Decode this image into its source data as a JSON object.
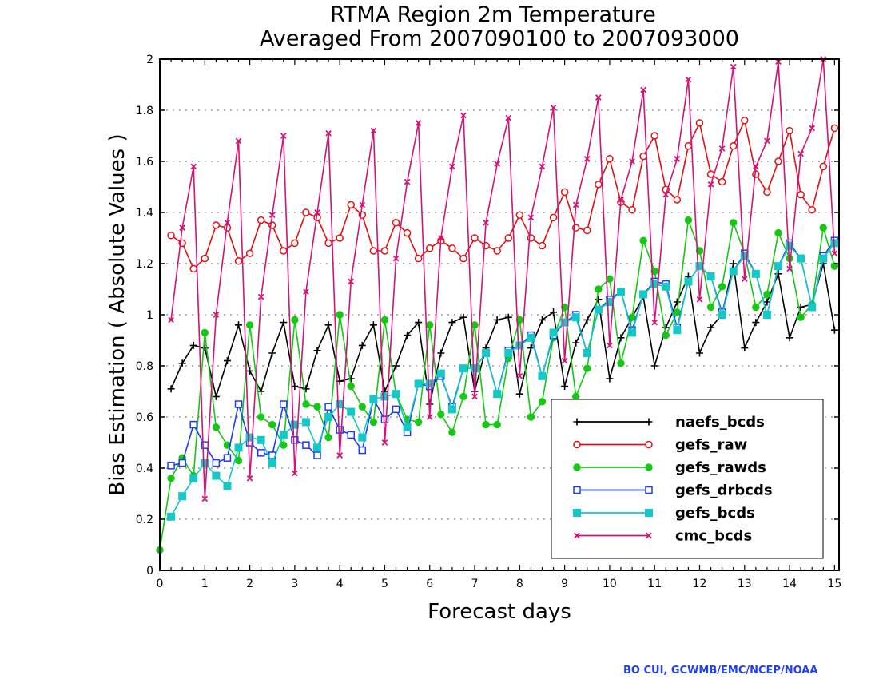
{
  "chart_data": {
    "type": "line",
    "title": "RTMA Region 2m Temperature",
    "subtitle": "Averaged From 2007090100 to 2007093000",
    "xlabel": "Forecast days",
    "ylabel": "Bias Estimation ( Absolute Values )",
    "xlim": [
      0,
      15.1
    ],
    "ylim": [
      0,
      2
    ],
    "xticks": [
      "0",
      "1",
      "2",
      "3",
      "4",
      "5",
      "6",
      "7",
      "8",
      "9",
      "10",
      "11",
      "12",
      "13",
      "14",
      "15"
    ],
    "yticks": [
      "0",
      "0.2",
      "0.4",
      "0.6",
      "0.8",
      "1",
      "1.2",
      "1.4",
      "1.6",
      "1.8",
      "2"
    ],
    "grid": "horizontal dotted",
    "legend_position": "bottom-right",
    "series": [
      {
        "name": "naefs_bcds",
        "color": "#000000",
        "marker": "plus",
        "x": [
          0.25,
          0.5,
          0.75,
          1.0,
          1.25,
          1.5,
          1.75,
          2.0,
          2.25,
          2.5,
          2.75,
          3.0,
          3.25,
          3.5,
          3.75,
          4.0,
          4.25,
          4.5,
          4.75,
          5.0,
          5.25,
          5.5,
          5.75,
          6.0,
          6.25,
          6.5,
          6.75,
          7.0,
          7.25,
          7.5,
          7.75,
          8.0,
          8.25,
          8.5,
          8.75,
          9.0,
          9.25,
          9.5,
          9.75,
          10.0,
          10.25,
          10.5,
          10.75,
          11.0,
          11.25,
          11.5,
          11.75,
          12.0,
          12.25,
          12.5,
          12.75,
          13.0,
          13.25,
          13.5,
          13.75,
          14.0,
          14.25,
          14.5,
          14.75,
          15.0
        ],
        "y": [
          0.71,
          0.81,
          0.88,
          0.87,
          0.68,
          0.82,
          0.96,
          0.78,
          0.7,
          0.85,
          0.97,
          0.72,
          0.71,
          0.86,
          0.96,
          0.74,
          0.75,
          0.88,
          0.96,
          0.7,
          0.8,
          0.92,
          0.97,
          0.65,
          0.85,
          0.97,
          0.99,
          0.7,
          0.87,
          0.98,
          0.99,
          0.69,
          0.87,
          0.98,
          1.01,
          0.72,
          0.89,
          0.98,
          1.06,
          0.75,
          0.91,
          0.99,
          1.07,
          0.8,
          0.95,
          1.05,
          1.15,
          0.85,
          0.95,
          1.0,
          1.2,
          0.87,
          0.97,
          1.05,
          1.16,
          0.91,
          1.03,
          1.04,
          1.2,
          0.94
        ]
      },
      {
        "name": "gefs_raw",
        "color": "#e21010",
        "marker": "circle",
        "x": [
          0.25,
          0.5,
          0.75,
          1.0,
          1.25,
          1.5,
          1.75,
          2.0,
          2.25,
          2.5,
          2.75,
          3.0,
          3.25,
          3.5,
          3.75,
          4.0,
          4.25,
          4.5,
          4.75,
          5.0,
          5.25,
          5.5,
          5.75,
          6.0,
          6.25,
          6.5,
          6.75,
          7.0,
          7.25,
          7.5,
          7.75,
          8.0,
          8.25,
          8.5,
          8.75,
          9.0,
          9.25,
          9.5,
          9.75,
          10.0,
          10.25,
          10.5,
          10.75,
          11.0,
          11.25,
          11.5,
          11.75,
          12.0,
          12.25,
          12.5,
          12.75,
          13.0,
          13.25,
          13.5,
          13.75,
          14.0,
          14.25,
          14.5,
          14.75,
          15.0
        ],
        "y": [
          1.31,
          1.28,
          1.18,
          1.22,
          1.35,
          1.34,
          1.21,
          1.24,
          1.37,
          1.35,
          1.25,
          1.28,
          1.4,
          1.38,
          1.28,
          1.3,
          1.43,
          1.39,
          1.25,
          1.25,
          1.36,
          1.32,
          1.22,
          1.26,
          1.29,
          1.26,
          1.22,
          1.3,
          1.27,
          1.25,
          1.3,
          1.39,
          1.3,
          1.27,
          1.38,
          1.48,
          1.34,
          1.33,
          1.51,
          1.61,
          1.44,
          1.41,
          1.62,
          1.7,
          1.49,
          1.45,
          1.66,
          1.75,
          1.55,
          1.52,
          1.66,
          1.76,
          1.55,
          1.48,
          1.6,
          1.72,
          1.47,
          1.41,
          1.58,
          1.73
        ]
      },
      {
        "name": "gefs_rawds",
        "color": "#14c814",
        "marker": "filled-circle",
        "x": [
          0.0,
          0.25,
          0.5,
          0.75,
          1.0,
          1.25,
          1.5,
          1.75,
          2.0,
          2.25,
          2.5,
          2.75,
          3.0,
          3.25,
          3.5,
          3.75,
          4.0,
          4.25,
          4.5,
          4.75,
          5.0,
          5.25,
          5.5,
          5.75,
          6.0,
          6.25,
          6.5,
          6.75,
          7.0,
          7.25,
          7.5,
          7.75,
          8.0,
          8.25,
          8.5,
          8.75,
          9.0,
          9.25,
          9.5,
          9.75,
          10.0,
          10.25,
          10.5,
          10.75,
          11.0,
          11.25,
          11.5,
          11.75,
          12.0,
          12.25,
          12.5,
          12.75,
          13.0,
          13.25,
          13.5,
          13.75,
          14.0,
          14.25,
          14.5,
          14.75,
          15.0
        ],
        "y": [
          0.08,
          0.36,
          0.44,
          0.37,
          0.93,
          0.56,
          0.49,
          0.43,
          0.96,
          0.6,
          0.57,
          0.49,
          0.98,
          0.65,
          0.64,
          0.52,
          1.0,
          0.72,
          0.64,
          0.58,
          0.98,
          0.69,
          0.59,
          0.58,
          0.96,
          0.61,
          0.54,
          0.68,
          0.96,
          0.57,
          0.57,
          0.83,
          0.98,
          0.6,
          0.66,
          0.91,
          1.03,
          0.68,
          0.79,
          1.1,
          1.14,
          0.81,
          0.99,
          1.29,
          1.17,
          0.92,
          1.01,
          1.37,
          1.25,
          1.03,
          1.11,
          1.36,
          1.24,
          1.03,
          1.08,
          1.32,
          1.22,
          0.99,
          1.04,
          1.34,
          1.19
        ]
      },
      {
        "name": "gefs_drbcds",
        "color": "#1e3cf0",
        "marker": "square",
        "x": [
          0.25,
          0.5,
          0.75,
          1.0,
          1.25,
          1.5,
          1.75,
          2.0,
          2.25,
          2.5,
          2.75,
          3.0,
          3.25,
          3.5,
          3.75,
          4.0,
          4.25,
          4.5,
          4.75,
          5.0,
          5.25,
          5.5,
          5.75,
          6.0,
          6.25,
          6.5,
          6.75,
          7.0,
          7.25,
          7.5,
          7.75,
          8.0,
          8.25,
          8.5,
          8.75,
          9.0,
          9.25,
          9.5,
          9.75,
          10.0,
          10.25,
          10.5,
          10.75,
          11.0,
          11.25,
          11.5,
          11.75,
          12.0,
          12.25,
          12.5,
          12.75,
          13.0,
          13.25,
          13.5,
          13.75,
          14.0,
          14.25,
          14.5,
          14.75,
          15.0
        ],
        "y": [
          0.41,
          0.42,
          0.57,
          0.49,
          0.42,
          0.44,
          0.65,
          0.5,
          0.46,
          0.45,
          0.65,
          0.51,
          0.49,
          0.45,
          0.64,
          0.55,
          0.53,
          0.47,
          0.67,
          0.59,
          0.63,
          0.54,
          0.73,
          0.72,
          0.76,
          0.64,
          0.79,
          0.79,
          0.85,
          0.69,
          0.86,
          0.88,
          0.92,
          0.76,
          0.92,
          0.97,
          1.0,
          0.85,
          1.02,
          1.06,
          1.09,
          0.94,
          1.08,
          1.13,
          1.12,
          0.95,
          1.13,
          1.19,
          1.15,
          1.01,
          1.17,
          1.24,
          1.16,
          1.0,
          1.19,
          1.28,
          1.22,
          1.03,
          1.23,
          1.29
        ]
      },
      {
        "name": "gefs_bcds",
        "color": "#14c8c8",
        "marker": "filled-square",
        "x": [
          0.25,
          0.5,
          0.75,
          1.0,
          1.25,
          1.5,
          1.75,
          2.0,
          2.25,
          2.5,
          2.75,
          3.0,
          3.25,
          3.5,
          3.75,
          4.0,
          4.25,
          4.5,
          4.75,
          5.0,
          5.25,
          5.5,
          5.75,
          6.0,
          6.25,
          6.5,
          6.75,
          7.0,
          7.25,
          7.5,
          7.75,
          8.0,
          8.25,
          8.5,
          8.75,
          9.0,
          9.25,
          9.5,
          9.75,
          10.0,
          10.25,
          10.5,
          10.75,
          11.0,
          11.25,
          11.5,
          11.75,
          12.0,
          12.25,
          12.5,
          12.75,
          13.0,
          13.25,
          13.5,
          13.75,
          14.0,
          14.25,
          14.5,
          14.75,
          15.0
        ],
        "y": [
          0.21,
          0.29,
          0.36,
          0.42,
          0.37,
          0.33,
          0.48,
          0.52,
          0.51,
          0.42,
          0.53,
          0.57,
          0.58,
          0.48,
          0.6,
          0.65,
          0.62,
          0.52,
          0.67,
          0.68,
          0.69,
          0.56,
          0.73,
          0.73,
          0.77,
          0.63,
          0.79,
          0.79,
          0.85,
          0.69,
          0.85,
          0.88,
          0.91,
          0.76,
          0.93,
          0.97,
          0.99,
          0.85,
          1.02,
          1.05,
          1.09,
          0.93,
          1.08,
          1.12,
          1.11,
          0.94,
          1.13,
          1.19,
          1.15,
          1.0,
          1.17,
          1.23,
          1.16,
          1.0,
          1.19,
          1.27,
          1.22,
          1.03,
          1.22,
          1.28
        ]
      },
      {
        "name": "cmc_bcds",
        "color": "#d21478",
        "marker": "x",
        "x": [
          0.25,
          0.5,
          0.75,
          1.0,
          1.25,
          1.5,
          1.75,
          2.0,
          2.25,
          2.5,
          2.75,
          3.0,
          3.25,
          3.5,
          3.75,
          4.0,
          4.25,
          4.5,
          4.75,
          5.0,
          5.25,
          5.5,
          5.75,
          6.0,
          6.25,
          6.5,
          6.75,
          7.0,
          7.25,
          7.5,
          7.75,
          8.0,
          8.25,
          8.5,
          8.75,
          9.0,
          9.25,
          9.5,
          9.75,
          10.0,
          10.25,
          10.5,
          10.75,
          11.0,
          11.25,
          11.5,
          11.75,
          12.0,
          12.25,
          12.5,
          12.75,
          13.0,
          13.25,
          13.5,
          13.75,
          14.0,
          14.25,
          14.5,
          14.75,
          15.0
        ],
        "y": [
          0.98,
          1.34,
          1.58,
          0.28,
          1.0,
          1.36,
          1.68,
          0.36,
          1.07,
          1.39,
          1.7,
          0.38,
          1.09,
          1.4,
          1.71,
          0.45,
          1.13,
          1.43,
          1.72,
          0.5,
          1.22,
          1.52,
          1.75,
          0.6,
          1.3,
          1.58,
          1.78,
          0.68,
          1.36,
          1.59,
          1.77,
          0.76,
          1.38,
          1.58,
          1.81,
          0.82,
          1.43,
          1.61,
          1.85,
          0.88,
          1.45,
          1.6,
          1.88,
          0.97,
          1.47,
          1.61,
          1.92,
          1.06,
          1.51,
          1.65,
          1.97,
          1.14,
          1.58,
          1.68,
          1.99,
          1.18,
          1.63,
          1.73,
          2.01,
          1.24
        ]
      }
    ]
  },
  "credit": "BO CUI, GCWMB/EMC/NCEP/NOAA"
}
